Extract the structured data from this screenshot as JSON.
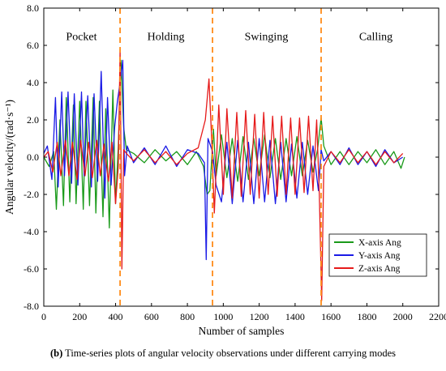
{
  "chart_data": {
    "type": "line",
    "title": "",
    "xlabel": "Number of samples",
    "ylabel": "Angular velocity/(rad·s⁻¹)",
    "xlim": [
      0,
      2200
    ],
    "ylim": [
      -8.0,
      8.0
    ],
    "x_ticks": [
      0,
      200,
      400,
      600,
      800,
      1000,
      1200,
      1400,
      1600,
      1800,
      2000,
      2200
    ],
    "y_ticks": [
      8.0,
      6.0,
      4.0,
      2.0,
      0.0,
      -2.0,
      -4.0,
      -6.0,
      -8.0
    ],
    "x_tick_labels": [
      "0",
      "200",
      "400",
      "600",
      "800",
      "1000",
      "1200",
      "1400",
      "1600",
      "1800",
      "2000",
      "2200"
    ],
    "y_tick_labels": [
      "8.0",
      "6.0",
      "4.0",
      "2.0",
      "0.0",
      "-2.0",
      "-4.0",
      "-6.0",
      "-8.0"
    ],
    "grid": false,
    "legend_position": "bottom-right",
    "mode_boundaries": [
      425,
      940,
      1545
    ],
    "boundary_color": "#ff8c1a",
    "modes": [
      {
        "label": "Pocket",
        "x": 210
      },
      {
        "label": "Holding",
        "x": 680
      },
      {
        "label": "Swinging",
        "x": 1240
      },
      {
        "label": "Calling",
        "x": 1850
      }
    ],
    "series": [
      {
        "name": "X-axis Ang",
        "color": "#1a9a1a",
        "x": [
          0,
          30,
          55,
          70,
          90,
          110,
          125,
          145,
          165,
          180,
          200,
          220,
          235,
          255,
          275,
          290,
          310,
          330,
          345,
          365,
          385,
          400,
          415,
          430,
          445,
          460,
          500,
          560,
          620,
          680,
          740,
          800,
          850,
          890,
          910,
          925,
          945,
          960,
          990,
          1020,
          1050,
          1080,
          1110,
          1140,
          1170,
          1200,
          1230,
          1260,
          1290,
          1320,
          1350,
          1380,
          1410,
          1440,
          1470,
          1500,
          1525,
          1545,
          1560,
          1600,
          1650,
          1700,
          1750,
          1800,
          1850,
          1900,
          1950,
          1990,
          2010
        ],
        "y": [
          0.0,
          -0.5,
          0.3,
          -2.8,
          2.0,
          -2.6,
          3.2,
          -2.4,
          2.8,
          -2.5,
          3.0,
          -2.8,
          3.0,
          -2.6,
          3.2,
          -3.0,
          3.0,
          -3.2,
          2.6,
          -3.8,
          3.6,
          -2.5,
          0.6,
          5.2,
          1.6,
          0.4,
          0.2,
          -0.3,
          0.4,
          -0.2,
          0.3,
          -0.4,
          0.3,
          -0.5,
          -2.0,
          -1.8,
          1.5,
          -1.0,
          1.2,
          -1.1,
          1.0,
          -1.3,
          1.1,
          -1.2,
          1.0,
          -1.0,
          1.2,
          -1.1,
          1.0,
          -1.2,
          1.0,
          -1.0,
          1.1,
          -1.0,
          0.9,
          -0.8,
          0.4,
          2.1,
          0.6,
          -0.4,
          0.3,
          -0.4,
          0.3,
          -0.3,
          0.4,
          -0.4,
          0.3,
          -0.6,
          0.0
        ]
      },
      {
        "name": "Y-axis Ang",
        "color": "#1a1ae6",
        "x": [
          0,
          20,
          45,
          65,
          80,
          100,
          115,
          135,
          155,
          170,
          190,
          210,
          225,
          245,
          265,
          280,
          300,
          320,
          340,
          355,
          375,
          395,
          410,
          425,
          440,
          450,
          465,
          500,
          560,
          620,
          680,
          740,
          800,
          860,
          895,
          905,
          915,
          940,
          960,
          990,
          1020,
          1050,
          1080,
          1110,
          1140,
          1170,
          1200,
          1230,
          1260,
          1290,
          1320,
          1350,
          1380,
          1410,
          1440,
          1470,
          1500,
          1530,
          1545,
          1560,
          1600,
          1650,
          1700,
          1750,
          1800,
          1850,
          1900,
          1950,
          2000
        ],
        "y": [
          0.2,
          0.6,
          -1.2,
          3.2,
          -1.6,
          3.5,
          -1.0,
          3.5,
          -1.4,
          3.4,
          -1.5,
          3.5,
          -1.0,
          3.3,
          -1.6,
          3.4,
          -1.3,
          4.6,
          -2.2,
          3.2,
          -1.5,
          1.6,
          3.0,
          4.0,
          5.2,
          -1.0,
          0.6,
          -0.3,
          0.5,
          -0.4,
          0.6,
          -0.5,
          0.4,
          0.2,
          -0.3,
          -5.5,
          1.0,
          0.3,
          -1.5,
          -2.4,
          0.8,
          -2.5,
          0.9,
          -2.4,
          0.8,
          -2.5,
          1.0,
          -2.4,
          0.9,
          -2.5,
          0.8,
          -2.4,
          0.7,
          -2.2,
          0.8,
          -2.0,
          0.6,
          -1.8,
          0.4,
          -0.2,
          0.3,
          -0.4,
          0.5,
          -0.4,
          0.3,
          -0.5,
          0.4,
          -0.3,
          0.0
        ]
      },
      {
        "name": "Z-axis Ang",
        "color": "#e61a1a",
        "x": [
          0,
          25,
          50,
          75,
          95,
          120,
          140,
          160,
          185,
          205,
          230,
          250,
          270,
          295,
          315,
          335,
          360,
          380,
          400,
          415,
          425,
          435,
          445,
          460,
          500,
          560,
          620,
          680,
          740,
          800,
          860,
          900,
          920,
          935,
          950,
          975,
          1000,
          1020,
          1050,
          1075,
          1100,
          1125,
          1150,
          1175,
          1200,
          1225,
          1250,
          1275,
          1300,
          1325,
          1350,
          1375,
          1400,
          1425,
          1450,
          1475,
          1500,
          1520,
          1535,
          1548,
          1560,
          1600,
          1650,
          1700,
          1750,
          1800,
          1850,
          1900,
          1950,
          2000
        ],
        "y": [
          0.0,
          0.3,
          -0.8,
          0.8,
          -1.0,
          0.9,
          -1.0,
          0.8,
          -1.2,
          0.9,
          -1.0,
          0.8,
          -1.1,
          0.9,
          -1.0,
          0.7,
          -1.3,
          0.8,
          -2.5,
          -0.5,
          5.8,
          -6.0,
          0.4,
          0.2,
          -0.2,
          0.4,
          -0.3,
          0.3,
          -0.4,
          0.2,
          0.5,
          2.0,
          4.2,
          1.0,
          -3.0,
          2.8,
          -2.0,
          2.6,
          -2.2,
          2.4,
          -2.1,
          2.5,
          -2.0,
          2.3,
          -2.2,
          2.4,
          -2.0,
          2.2,
          -2.1,
          2.2,
          -2.0,
          2.1,
          -2.0,
          2.1,
          -1.9,
          2.2,
          -1.8,
          2.0,
          -2.0,
          -7.7,
          -0.5,
          0.3,
          -0.3,
          0.4,
          -0.3,
          0.3,
          -0.4,
          0.3,
          -0.3,
          0.2
        ]
      }
    ]
  },
  "caption": {
    "prefix": "(b)",
    "text": " Time-series plots of angular velocity observations under different carrying modes"
  }
}
